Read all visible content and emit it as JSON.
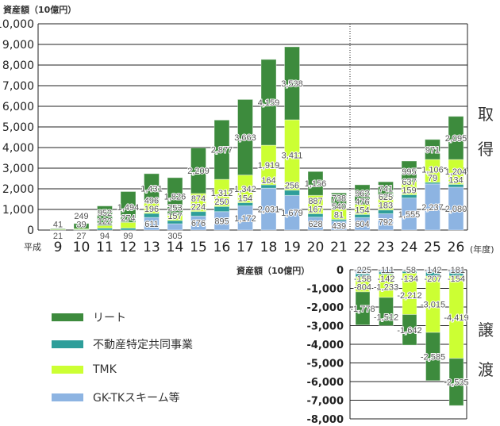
{
  "chart_data": [
    {
      "type": "bar",
      "stacked": true,
      "title": "資産額（10億円）",
      "side_label": [
        "取",
        "得"
      ],
      "x_prefix": "平成",
      "x_unit": "(年度)",
      "categories": [
        "9",
        "10",
        "11",
        "12",
        "13",
        "14",
        "15",
        "16",
        "17",
        "18",
        "19",
        "20",
        "21",
        "22",
        "23",
        "24",
        "25",
        "26"
      ],
      "ylim": [
        0,
        10000
      ],
      "yticks": [
        "0",
        "1,000",
        "2,000",
        "3,000",
        "4,000",
        "5,000",
        "6,000",
        "7,000",
        "8,000",
        "9,000",
        "10,000"
      ],
      "series": [
        {
          "name": "GK-TKスキーム等",
          "values": [
            0,
            0,
            0,
            0,
            611,
            305,
            676,
            895,
            1172,
            2031,
            1679,
            628,
            439,
            604,
            792,
            1555,
            2237,
            2080
          ]
        },
        {
          "name": "不動産特定共同事業",
          "values": [
            0,
            27,
            94,
            99,
            196,
            157,
            224,
            250,
            154,
            164,
            256,
            167,
            81,
            154,
            183,
            159,
            79,
            134
          ]
        },
        {
          "name": "TMK",
          "values": [
            21,
            39,
            122,
            274,
            496,
            253,
            874,
            1312,
            1342,
            1919,
            3411,
            887,
            540,
            476,
            625,
            637,
            1106,
            1204
          ]
        },
        {
          "name": "リート",
          "values": [
            41,
            249,
            952,
            1494,
            1431,
            1826,
            2209,
            2877,
            3663,
            4159,
            3538,
            1156,
            738,
            962,
            741,
            995,
            971,
            2095
          ]
        }
      ]
    },
    {
      "type": "bar",
      "stacked": true,
      "title": "資産額（10億円）",
      "side_label": [
        "譲",
        "渡"
      ],
      "categories": [
        "22",
        "23",
        "24",
        "25",
        "26"
      ],
      "ylim": [
        -8000,
        0
      ],
      "yticks": [
        "0",
        "-1,000",
        "-2,000",
        "-3,000",
        "-4,000",
        "-5,000",
        "-6,000",
        "-7,000",
        "-8,000"
      ],
      "series": [
        {
          "name": "GK-TKスキーム等",
          "values": [
            -225,
            -111,
            -58,
            -142,
            -181
          ]
        },
        {
          "name": "不動産特定共同事業",
          "values": [
            -158,
            -142,
            -134,
            -207,
            -154
          ]
        },
        {
          "name": "TMK",
          "values": [
            -804,
            -1233,
            -2212,
            -3015,
            -4419
          ]
        },
        {
          "name": "リート",
          "values": [
            -1778,
            -1512,
            -1642,
            -2585,
            -2535
          ]
        }
      ]
    }
  ],
  "legend": [
    "リート",
    "不動産特定共同事業",
    "TMK",
    "GK-TKスキーム等"
  ],
  "colors": {
    "GK-TKスキーム等": "#8db4e2",
    "不動産特定共同事業": "#2e9e9a",
    "TMK": "#ccff33",
    "リート": "#3d8b3d"
  }
}
